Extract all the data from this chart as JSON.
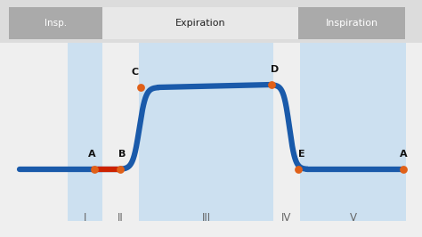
{
  "background_color": "#dcdcdc",
  "plot_bg_color": "#efefef",
  "blue_shaded_color": "#cce0f0",
  "line_color": "#1a5aaa",
  "dot_color_orange": "#e06018",
  "label_color": "#111111",
  "header_insp_bg": "#aaaaaa",
  "header_exp_bg": "#e8e8e8",
  "header_insp2_bg": "#aaaaaa",
  "header_insp_text": "#ffffff",
  "header_exp_text": "#222222",
  "header_insp2_text": "#ffffff",
  "roman_numeral_color": "#666666",
  "insp_label": "Insp.",
  "exp_label": "Expiration",
  "inspiration_label": "Inspiration",
  "figsize": [
    4.74,
    2.66
  ],
  "dpi": 100,
  "xlim": [
    0,
    474
  ],
  "ylim": [
    0,
    266
  ]
}
